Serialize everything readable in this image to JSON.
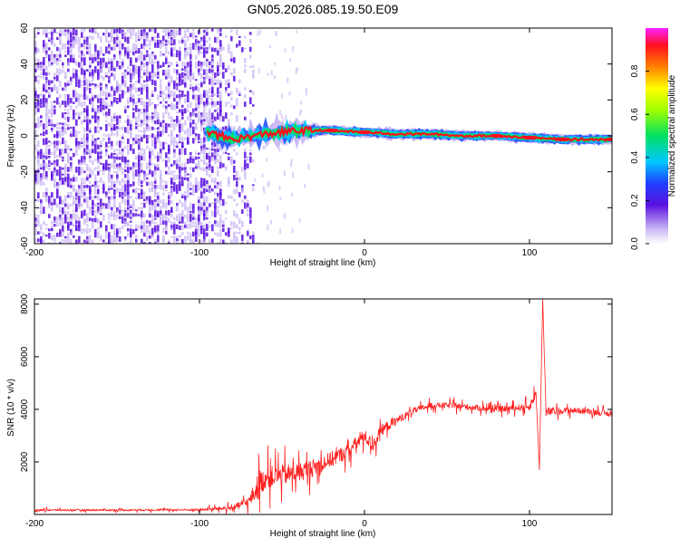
{
  "title": "GN05.2026.085.19.50.E09",
  "colors": {
    "snr_line": "#ff2020",
    "scatter_dark": "#5a10e0",
    "scatter_light": "#c8b4f4"
  },
  "chart_data": [
    {
      "type": "heatmap",
      "name": "spectrogram",
      "xlabel": "Height of straight line (km)",
      "ylabel": "Frequency (Hz)",
      "xlim": [
        -200,
        150
      ],
      "ylim": [
        -60,
        60
      ],
      "xticks": [
        -200,
        -100,
        0,
        100
      ],
      "xtick_labels": [
        "-200",
        "-100",
        "0",
        "100"
      ],
      "yticks": [
        -60,
        -40,
        -20,
        0,
        20,
        40,
        60
      ],
      "ytick_labels": [
        "-60",
        "-40",
        "-20",
        "0",
        "20",
        "40",
        "60"
      ],
      "colorbar": {
        "label": "Normalized spectral amplitude",
        "range": [
          0,
          1
        ],
        "ticks": [
          0.0,
          0.2,
          0.4,
          0.6,
          0.8
        ],
        "tick_labels": [
          "0.0",
          "0.2",
          "0.4",
          "0.6",
          "0.8"
        ],
        "colormap": "rainbow (white-violet-blue-cyan-green-yellow-orange-red-magenta)"
      },
      "noise_region": {
        "x_from": -200,
        "x_to": -68,
        "freq_range": [
          -60,
          60
        ],
        "amplitude": 0.1
      },
      "ridge": [
        {
          "x": -95,
          "freq": 2,
          "amplitude": 0.35
        },
        {
          "x": -80,
          "freq": -2,
          "amplitude": 0.4
        },
        {
          "x": -60,
          "freq": 1,
          "amplitude": 0.5
        },
        {
          "x": -40,
          "freq": 3,
          "amplitude": 0.7
        },
        {
          "x": -20,
          "freq": 3,
          "amplitude": 0.85
        },
        {
          "x": 0,
          "freq": 2,
          "amplitude": 0.8
        },
        {
          "x": 20,
          "freq": 1,
          "amplitude": 0.7
        },
        {
          "x": 40,
          "freq": 1,
          "amplitude": 0.7
        },
        {
          "x": 60,
          "freq": 0,
          "amplitude": 0.75
        },
        {
          "x": 80,
          "freq": 0,
          "amplitude": 0.85
        },
        {
          "x": 100,
          "freq": -1,
          "amplitude": 0.9
        },
        {
          "x": 120,
          "freq": -2,
          "amplitude": 0.9
        },
        {
          "x": 150,
          "freq": -2,
          "amplitude": 0.9
        }
      ]
    },
    {
      "type": "line",
      "name": "snr",
      "xlabel": "Height of straight line (km)",
      "ylabel": "SNR (10 * v/v)",
      "xlim": [
        -200,
        150
      ],
      "ylim": [
        0,
        8200
      ],
      "xticks": [
        -200,
        -100,
        0,
        100
      ],
      "xtick_labels": [
        "-200",
        "-100",
        "0",
        "100"
      ],
      "yticks": [
        2000,
        4000,
        6000,
        8000
      ],
      "ytick_labels": [
        "2000",
        "4000",
        "6000",
        "8000"
      ],
      "series": [
        {
          "name": "SNR",
          "x": [
            -200,
            -150,
            -100,
            -80,
            -70,
            -65,
            -60,
            -50,
            -40,
            -30,
            -20,
            -10,
            0,
            5,
            10,
            20,
            30,
            40,
            50,
            60,
            70,
            80,
            90,
            100,
            104,
            106,
            108,
            110,
            120,
            130,
            140,
            150
          ],
          "values": [
            170,
            170,
            180,
            250,
            500,
            1000,
            1400,
            1500,
            1600,
            1800,
            2100,
            2400,
            3000,
            2600,
            3200,
            3600,
            3950,
            4150,
            4150,
            4100,
            4050,
            4000,
            4050,
            4100,
            4600,
            1700,
            8200,
            3900,
            3950,
            3950,
            3900,
            3800
          ],
          "noise_amplitude": [
            60,
            60,
            70,
            150,
            300,
            800,
            700,
            650,
            600,
            550,
            500,
            450,
            400,
            400,
            350,
            250,
            200,
            180,
            180,
            180,
            180,
            180,
            180,
            250,
            300,
            0,
            0,
            300,
            180,
            180,
            180,
            180
          ]
        }
      ]
    }
  ]
}
